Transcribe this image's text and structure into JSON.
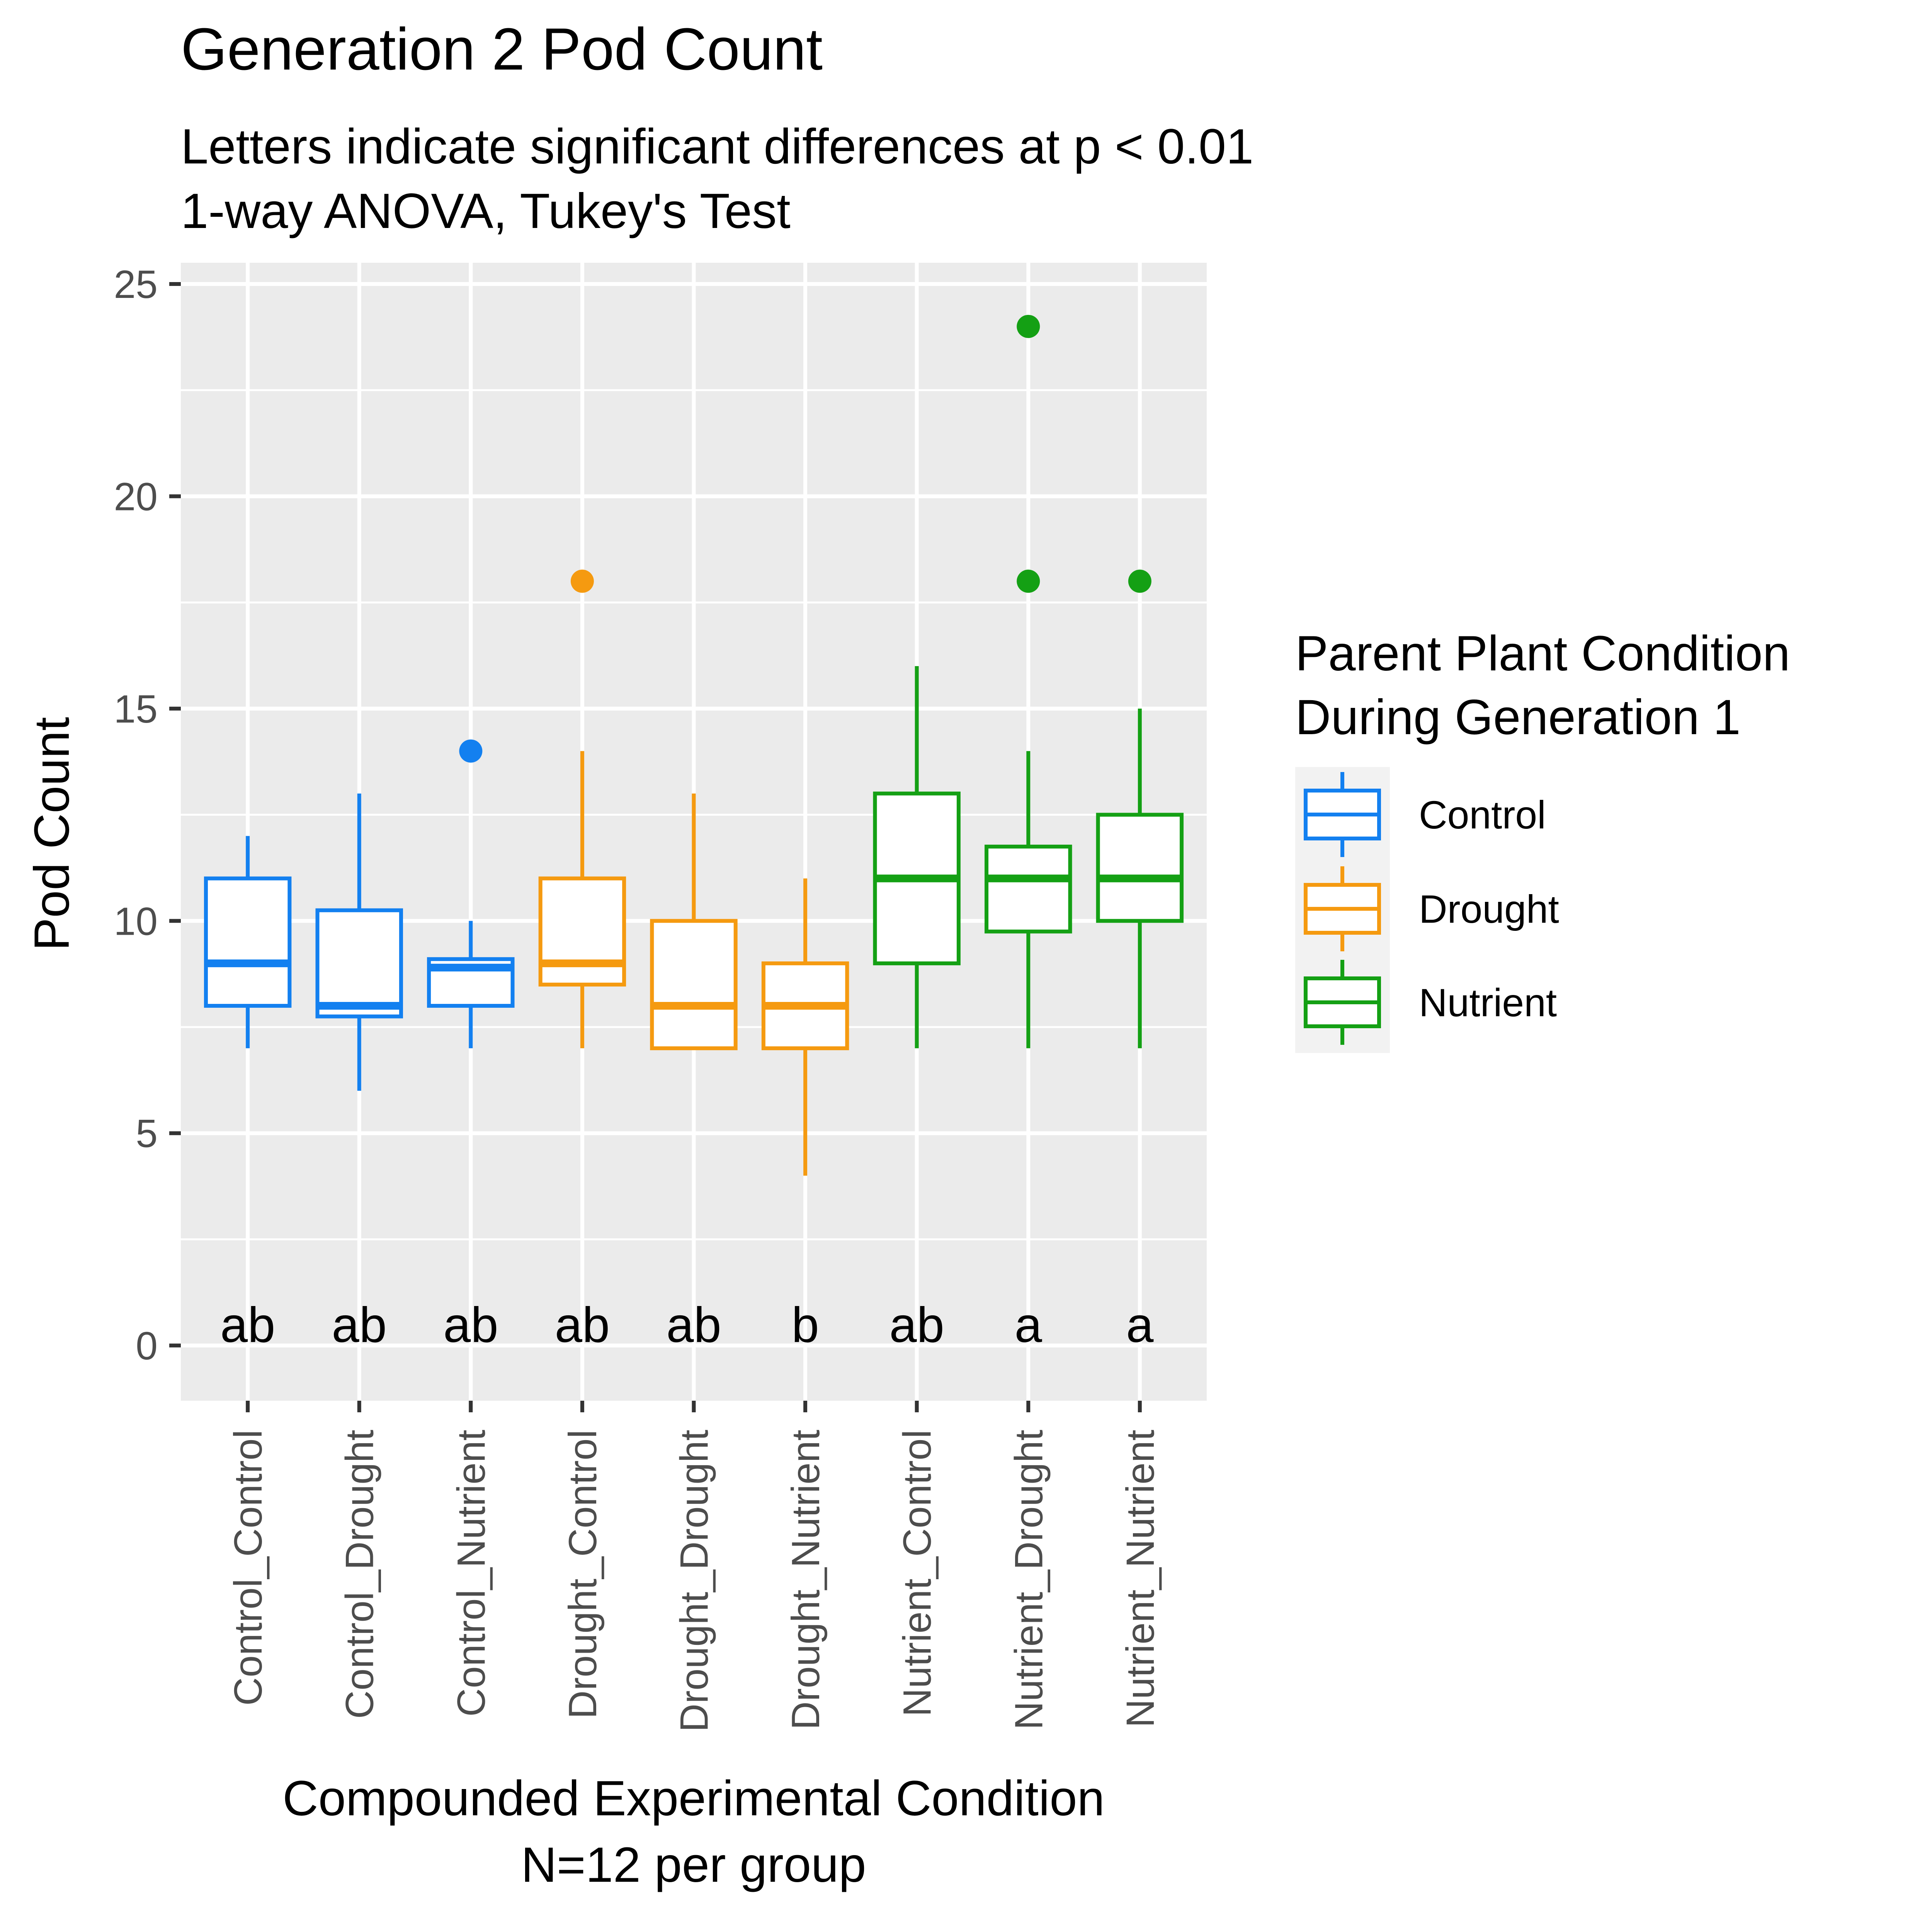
{
  "chart_data": {
    "type": "box",
    "title": "Generation 2 Pod Count",
    "subtitle_lines": [
      "Letters indicate significant differences at p < 0.01",
      "1-way ANOVA, Tukey's Test"
    ],
    "xlabel_lines": [
      "Compounded Experimental Condition",
      "N=12 per group"
    ],
    "ylabel": "Pod Count",
    "ylim": [
      -1.3,
      25.5
    ],
    "y_ticks": [
      0,
      5,
      10,
      15,
      20,
      25
    ],
    "grid": true,
    "legend": {
      "title_lines": [
        "Parent Plant Condition",
        "During Generation 1"
      ],
      "position": "right",
      "entries": [
        {
          "label": "Control",
          "color": "#1380f0"
        },
        {
          "label": "Drought",
          "color": "#f59a10"
        },
        {
          "label": "Nutrient",
          "color": "#14a014"
        }
      ]
    },
    "colors": {
      "Control": "#1380f0",
      "Drought": "#f59a10",
      "Nutrient": "#14a014"
    },
    "categories": [
      "Control_Control",
      "Control_Drought",
      "Control_Nutrient",
      "Drought_Control",
      "Drought_Drought",
      "Drought_Nutrient",
      "Nutrient_Control",
      "Nutrient_Drought",
      "Nutrient_Nutrient"
    ],
    "boxes": [
      {
        "group": "Control",
        "whisker_low": 7,
        "q1": 8,
        "median": 9,
        "q3": 11,
        "whisker_high": 12,
        "outliers": [],
        "letter": "ab"
      },
      {
        "group": "Control",
        "whisker_low": 6,
        "q1": 7.75,
        "median": 8,
        "q3": 10.25,
        "whisker_high": 13,
        "outliers": [],
        "letter": "ab"
      },
      {
        "group": "Control",
        "whisker_low": 7,
        "q1": 8,
        "median": 8.9,
        "q3": 9.1,
        "whisker_high": 10,
        "outliers": [
          14
        ],
        "letter": "ab"
      },
      {
        "group": "Drought",
        "whisker_low": 7,
        "q1": 8.5,
        "median": 9,
        "q3": 11,
        "whisker_high": 14,
        "outliers": [
          18
        ],
        "letter": "ab"
      },
      {
        "group": "Drought",
        "whisker_low": 7,
        "q1": 7,
        "median": 8,
        "q3": 10,
        "whisker_high": 13,
        "outliers": [],
        "letter": "ab"
      },
      {
        "group": "Drought",
        "whisker_low": 4,
        "q1": 7,
        "median": 8,
        "q3": 9,
        "whisker_high": 11,
        "outliers": [],
        "letter": "b"
      },
      {
        "group": "Nutrient",
        "whisker_low": 7,
        "q1": 9,
        "median": 11,
        "q3": 13,
        "whisker_high": 16,
        "outliers": [],
        "letter": "ab"
      },
      {
        "group": "Nutrient",
        "whisker_low": 7,
        "q1": 9.75,
        "median": 11,
        "q3": 11.75,
        "whisker_high": 14,
        "outliers": [
          18,
          24
        ],
        "letter": "a"
      },
      {
        "group": "Nutrient",
        "whisker_low": 7,
        "q1": 10,
        "median": 11,
        "q3": 12.5,
        "whisker_high": 15,
        "outliers": [
          18
        ],
        "letter": "a"
      }
    ],
    "letter_y": 0.5
  }
}
